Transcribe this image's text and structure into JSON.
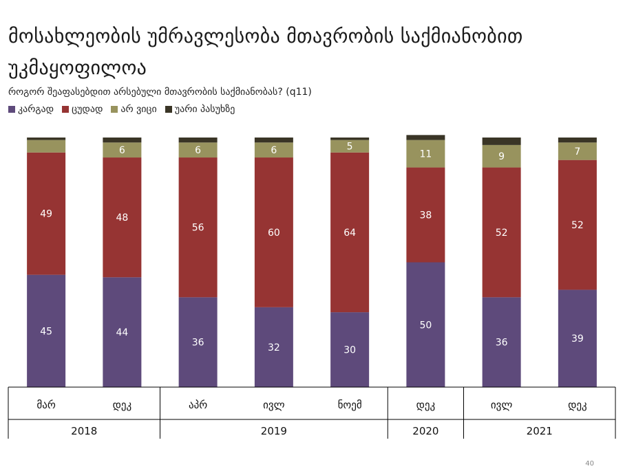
{
  "title": "მოსახლეობის უმრავლესობა მთავრობის საქმიანობით უკმაყოფილოა",
  "subtitle": "როგორ შეაფასებდით არსებული მთავრობის საქმიანობას? (q11)",
  "page_number": "40",
  "colors": {
    "good": "#5E4A7B",
    "bad": "#963433",
    "dont_know": "#98935E",
    "refuse": "#3A3526"
  },
  "chart_data": {
    "type": "bar",
    "stacked": true,
    "categories": [
      "მარ",
      "დეკ",
      "აპრ",
      "ივლ",
      "ნოემ",
      "დეკ",
      "ივლ",
      "დეკ"
    ],
    "year_groups": [
      {
        "label": "2018",
        "span": 2
      },
      {
        "label": "2019",
        "span": 3
      },
      {
        "label": "2020",
        "span": 1
      },
      {
        "label": "2021",
        "span": 2
      }
    ],
    "series": [
      {
        "name": "კარგად",
        "color": "#5E4A7B",
        "values": [
          45,
          44,
          36,
          32,
          30,
          50,
          36,
          39
        ]
      },
      {
        "name": "ცუდად",
        "color": "#963433",
        "values": [
          49,
          48,
          56,
          60,
          64,
          38,
          52,
          52
        ]
      },
      {
        "name": "არ ვიცი",
        "color": "#98935E",
        "values": [
          5,
          6,
          6,
          6,
          5,
          11,
          9,
          7
        ]
      },
      {
        "name": "უარი პასუხზე",
        "color": "#3A3526",
        "values": [
          1,
          2,
          2,
          2,
          1,
          2,
          3,
          2
        ]
      }
    ],
    "data_labels": [
      [
        "45",
        "44",
        "36",
        "32",
        "30",
        "50",
        "36",
        "39"
      ],
      [
        "49",
        "48",
        "56",
        "60",
        "64",
        "38",
        "52",
        "52"
      ],
      [
        "",
        "6",
        "6",
        "6",
        "5",
        "11",
        "9",
        "7"
      ],
      [
        "",
        "",
        "",
        "",
        "",
        "",
        "",
        ""
      ]
    ],
    "ylim": [
      0,
      100
    ],
    "legend_position": "top-left",
    "grid": false
  }
}
